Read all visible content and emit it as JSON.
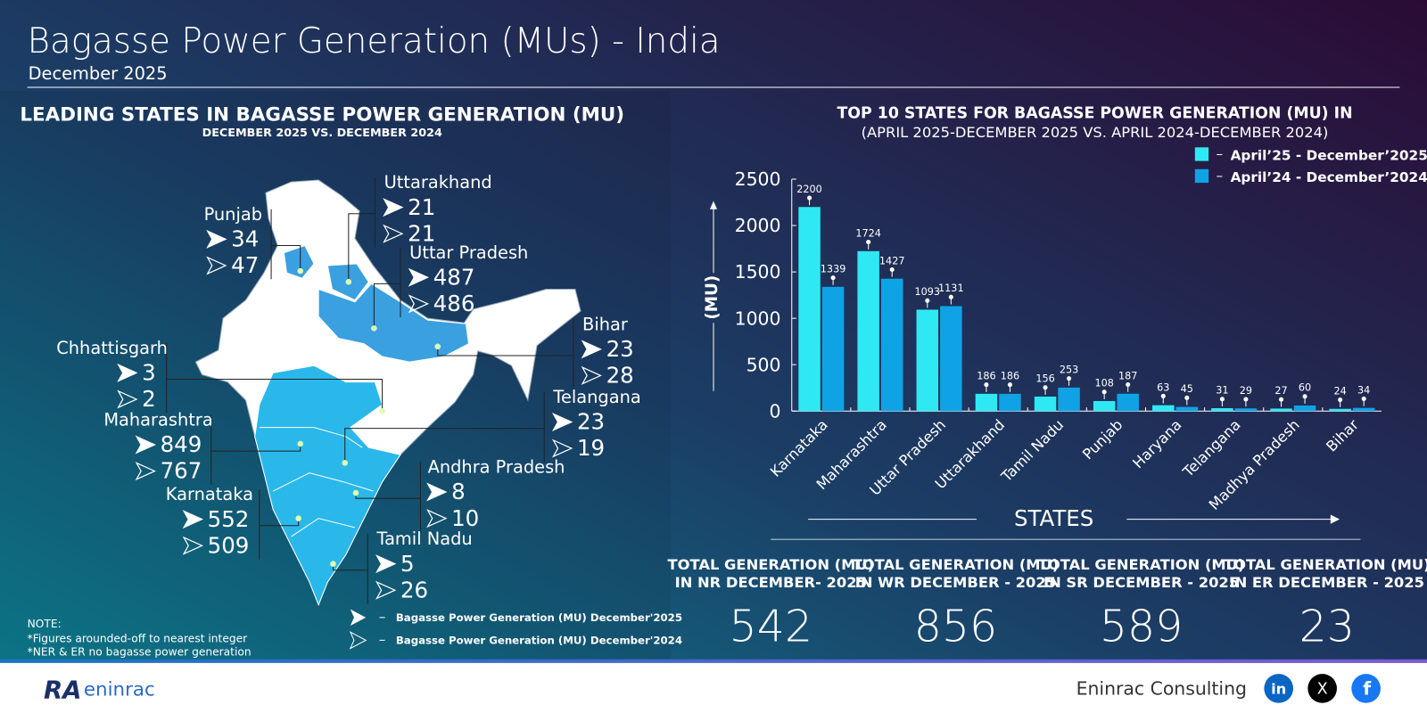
{
  "header": {
    "title": "Bagasse Power Generation (MUs) - India",
    "subtitle": "December 2025"
  },
  "map_panel": {
    "title": "LEADING STATES IN BAGASSE POWER GENERATION (MU)",
    "subtitle": "DECEMBER 2025 VS. DECEMBER 2024",
    "states": [
      {
        "name": "Uttarakhand",
        "dec2025": 21,
        "dec2024": 21
      },
      {
        "name": "Punjab",
        "dec2025": 34,
        "dec2024": 47
      },
      {
        "name": "Uttar Pradesh",
        "dec2025": 487,
        "dec2024": 486
      },
      {
        "name": "Chhattisgarh",
        "dec2025": 3,
        "dec2024": 2
      },
      {
        "name": "Bihar",
        "dec2025": 23,
        "dec2024": 28
      },
      {
        "name": "Telangana",
        "dec2025": 23,
        "dec2024": 19
      },
      {
        "name": "Maharashtra",
        "dec2025": 849,
        "dec2024": 767
      },
      {
        "name": "Andhra Pradesh",
        "dec2025": 8,
        "dec2024": 10
      },
      {
        "name": "Karnataka",
        "dec2025": 552,
        "dec2024": 509
      },
      {
        "name": "Tamil Nadu",
        "dec2025": 5,
        "dec2024": 26
      }
    ],
    "legend": [
      "Bagasse Power Generation (MU) December'2025",
      "Bagasse Power Generation (MU) December'2024"
    ],
    "notes": [
      "NOTE:",
      "*Figures arounded-off to nearest integer",
      "*NER & ER no bagasse power generation"
    ]
  },
  "chart_data": {
    "type": "bar",
    "title": "TOP 10 STATES FOR BAGASSE POWER GENERATION (MU) IN",
    "subtitle": "(APRIL 2025-DECEMBER 2025 VS. APRIL 2024-DECEMBER 2024)",
    "x_label": "STATES",
    "y_label": "(MU)",
    "categories": [
      "Karnataka",
      "Maharashtra",
      "Uttar Pradesh",
      "Uttarakhand",
      "Tamil Nadu",
      "Punjab",
      "Haryana",
      "Telangana",
      "Madhya Pradesh",
      "Bihar"
    ],
    "series": [
      {
        "name": "April’25 - December’2025",
        "color": "#2ee9f4",
        "values": [
          2200,
          1724,
          1093,
          186,
          156,
          108,
          63,
          31,
          27,
          24
        ]
      },
      {
        "name": "April’24 - December’2024",
        "color": "#0fa3e6",
        "values": [
          1339,
          1427,
          1131,
          186,
          253,
          187,
          45,
          29,
          60,
          34
        ]
      }
    ],
    "ylim": [
      0,
      2500
    ],
    "yticks": [
      0,
      500,
      1000,
      1500,
      2000,
      2500
    ],
    "grid": false,
    "legend": "top-right"
  },
  "totals": [
    {
      "label": [
        "TOTAL  GENERATION (MU)",
        "IN NR DECEMBER- 2025"
      ],
      "value": 542
    },
    {
      "label": [
        "TOTAL  GENERATION (MU)",
        "IN WR DECEMBER - 2025"
      ],
      "value": 856
    },
    {
      "label": [
        "TOTAL  GENERATION (MU)",
        "IN SR DECEMBER - 2025"
      ],
      "value": 589
    },
    {
      "label": [
        "TOTAL  GENERATION (MU)",
        "IN ER DECEMBER - 2025"
      ],
      "value": 23
    }
  ],
  "footer": {
    "logo": [
      "RA",
      "eninrac"
    ],
    "brand": "Eninrac Consulting",
    "social": [
      "in",
      "X",
      "f"
    ]
  }
}
